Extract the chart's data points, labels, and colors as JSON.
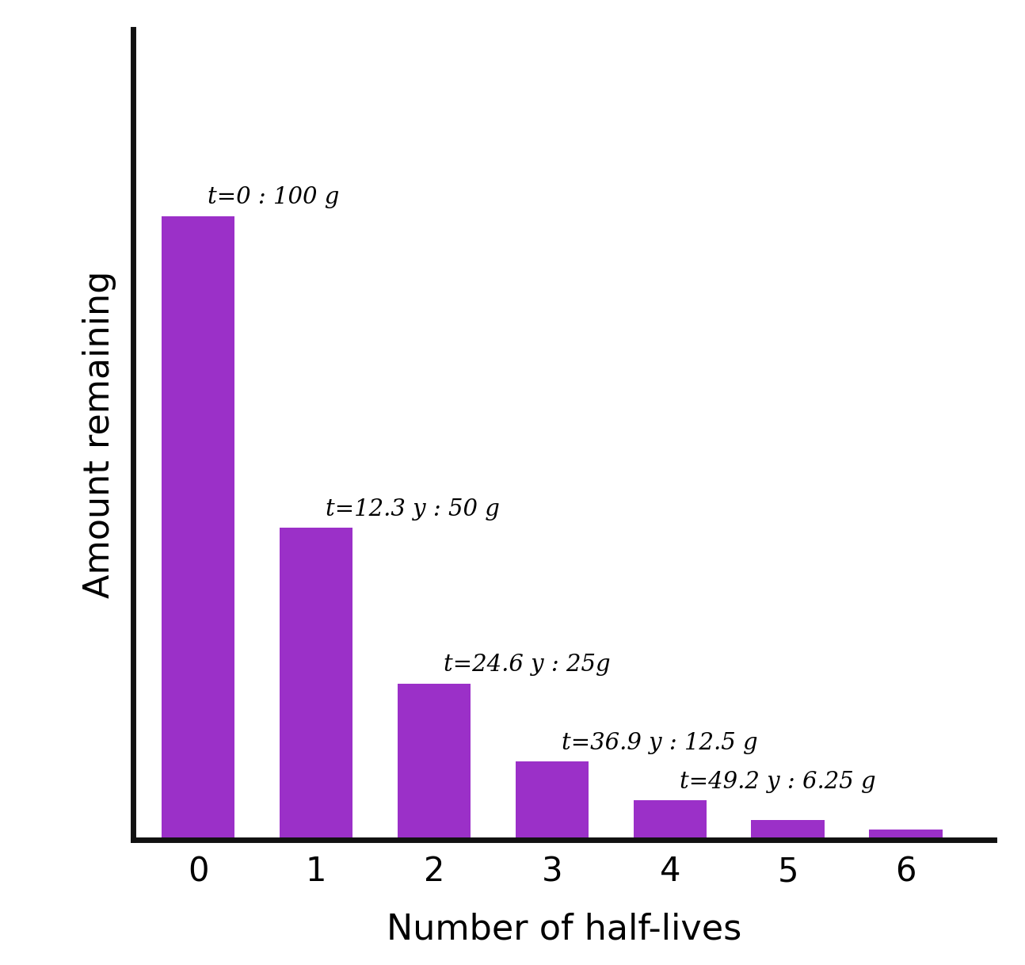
{
  "categories": [
    0,
    1,
    2,
    3,
    4,
    5,
    6
  ],
  "values": [
    100,
    50,
    25,
    12.5,
    6.25,
    3.125,
    1.5625
  ],
  "bar_color": "#9B30C8",
  "bar_edgecolor": "#9B30C8",
  "labels": [
    "t=0 : 100 g",
    "t=12.3 y : 50 g",
    "t=24.6 y : 25g",
    "t=36.9 y : 12.5 g",
    "t=49.2 y : 6.25 g",
    "",
    ""
  ],
  "xlabel": "Number of half-lives",
  "ylabel": "Amount remaining",
  "ylim": [
    0,
    130
  ],
  "xlim": [
    -0.55,
    6.75
  ],
  "background_color": "#ffffff",
  "spine_color": "#111111",
  "spine_linewidth": 5.0,
  "xlabel_fontsize": 32,
  "ylabel_fontsize": 32,
  "tick_fontsize": 30,
  "label_fontsize": 21,
  "bar_width": 0.62
}
